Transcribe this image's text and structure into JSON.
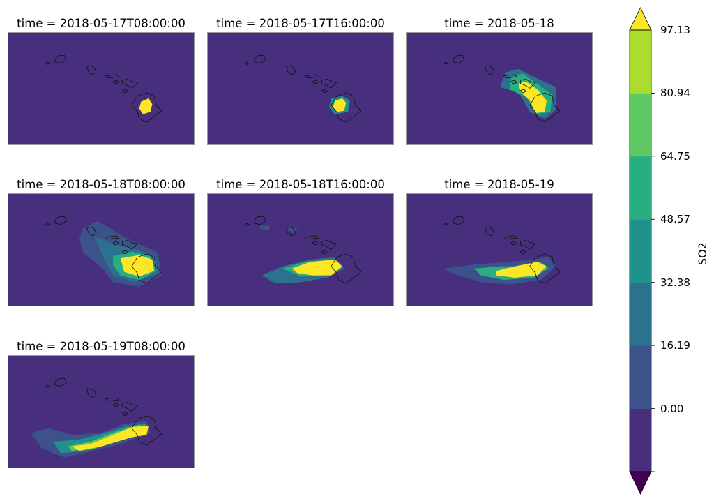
{
  "chart_data": {
    "type": "contourf",
    "variable": "SO2",
    "panels": [
      {
        "title": "time = 2018-05-17T08:00:00",
        "max_level": 6
      },
      {
        "title": "time = 2018-05-17T16:00:00",
        "max_level": 6
      },
      {
        "title": "time = 2018-05-18",
        "max_level": 6
      },
      {
        "title": "time = 2018-05-18T08:00:00",
        "max_level": 6
      },
      {
        "title": "time = 2018-05-18T16:00:00",
        "max_level": 6
      },
      {
        "title": "time = 2018-05-19",
        "max_level": 6
      },
      {
        "title": "time = 2018-05-19T08:00:00",
        "max_level": 6
      }
    ],
    "colorbar": {
      "label": "SO2",
      "levels": [
        0.0,
        16.19,
        32.38,
        48.57,
        64.75,
        80.94,
        97.13
      ],
      "tick_labels": [
        "97.13",
        "80.94",
        "64.75",
        "48.57",
        "32.38",
        "16.19",
        "0.00"
      ],
      "colors": [
        "#472f7d",
        "#3b528b",
        "#2c728e",
        "#21918c",
        "#28ae80",
        "#5ec962",
        "#addc30"
      ],
      "under_color": "#440154",
      "over_color": "#fde725",
      "extend": "both"
    }
  }
}
